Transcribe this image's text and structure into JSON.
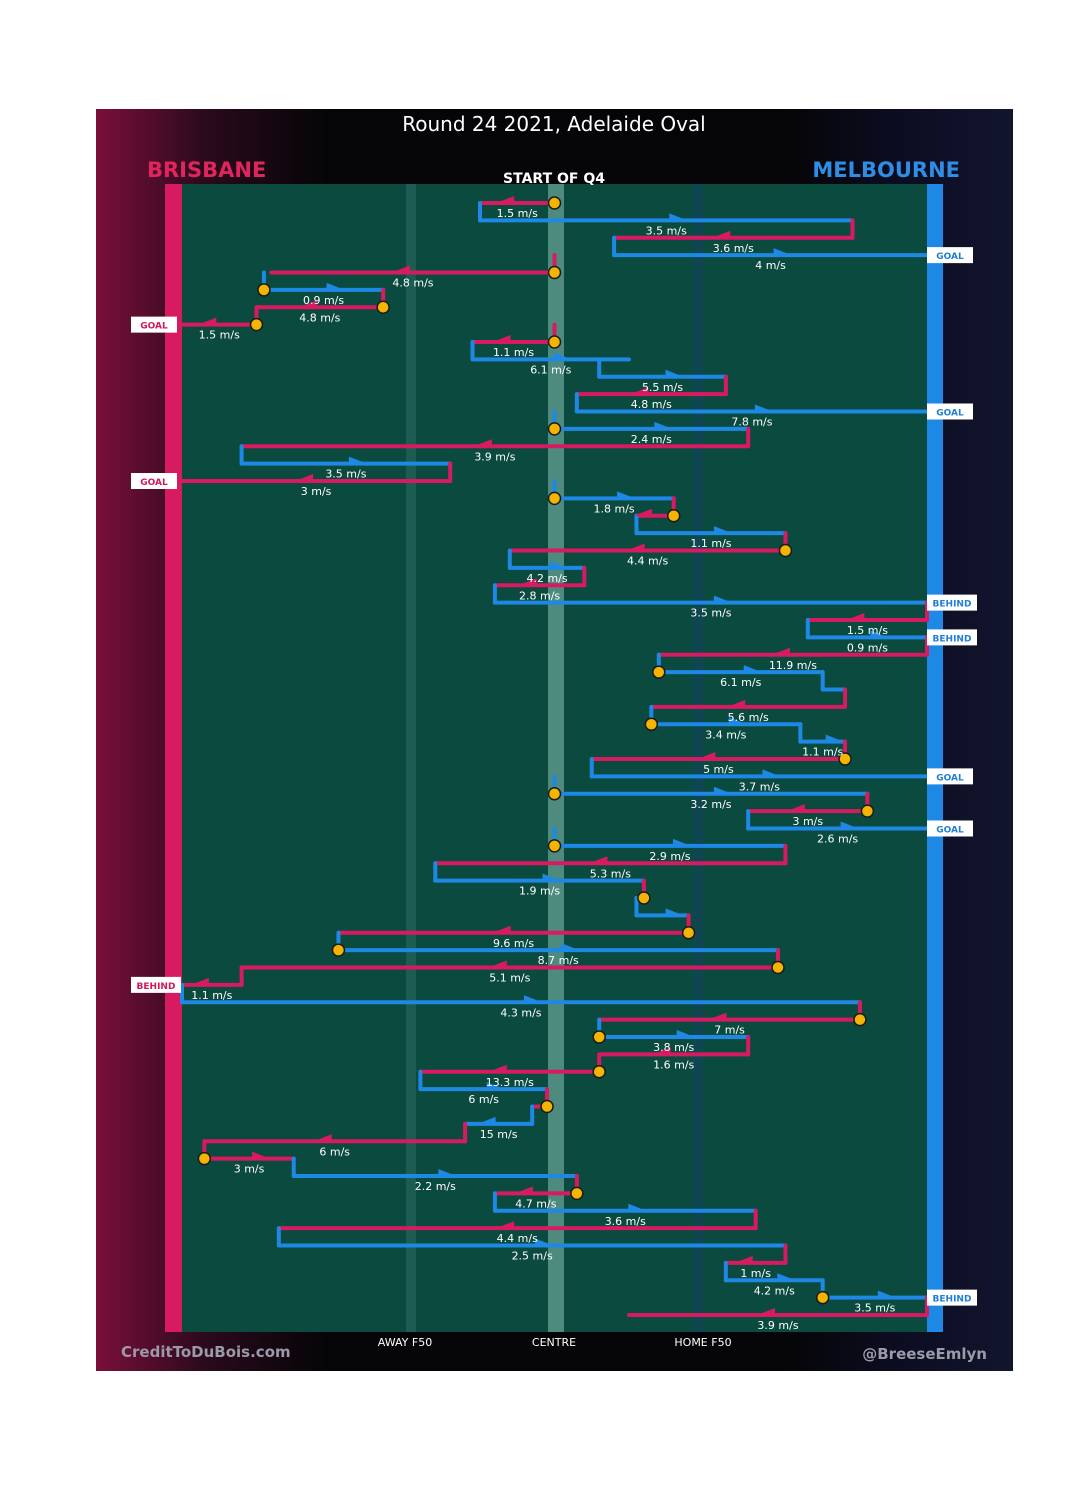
{
  "chart_data": {
    "type": "chain-flow",
    "title": "Round 24 2021, Adelaide Oval",
    "subtitle": "START OF Q4",
    "team_left": "BRISBANE",
    "team_right": "MELBOURNE",
    "colors": {
      "brisbane": "#d81b60",
      "melbourne": "#1e88e5",
      "field": "#0b4a3f",
      "ball": "#f5b400"
    },
    "x_axis": {
      "labels": [
        "AWAY F50",
        "CENTRE",
        "HOME F50"
      ],
      "range": [
        0,
        100
      ]
    },
    "credits": {
      "left": "CreditToDuBois.com",
      "right": "@BreeseEmlyn"
    },
    "steps": [
      {
        "team": "B",
        "from": 50,
        "to": 40,
        "speed": "1.5 m/s",
        "marker": "start"
      },
      {
        "team": "M",
        "from": 40,
        "to": 90,
        "speed": "3.5 m/s"
      },
      {
        "team": "B",
        "from": 90,
        "to": 58,
        "speed": "3.6 m/s"
      },
      {
        "team": "M",
        "from": 58,
        "to": 100,
        "speed": "4 m/s",
        "end": "GOAL"
      },
      {
        "team": "B",
        "from": 50,
        "to": 12,
        "speed": "4.8 m/s",
        "marker": "start"
      },
      {
        "team": "M",
        "from": 11,
        "to": 27,
        "speed": "0.9 m/s",
        "marker": "start"
      },
      {
        "team": "B",
        "from": 27,
        "to": 10,
        "speed": "4.8 m/s",
        "marker": "start"
      },
      {
        "team": "B",
        "from": 10,
        "to": 0,
        "speed": "1.5 m/s",
        "marker": "start",
        "end": "GOAL"
      },
      {
        "team": "B",
        "from": 50,
        "to": 39,
        "speed": "1.1 m/s",
        "marker": "start"
      },
      {
        "team": "M",
        "from": 39,
        "to": 60,
        "speed": "6.1 m/s"
      },
      {
        "team": "M",
        "from": 56,
        "to": 73,
        "speed": "5.5 m/s"
      },
      {
        "team": "B",
        "from": 73,
        "to": 53,
        "speed": "4.8 m/s"
      },
      {
        "team": "M",
        "from": 53,
        "to": 100,
        "speed": "7.8 m/s",
        "end": "GOAL"
      },
      {
        "team": "M",
        "from": 50,
        "to": 76,
        "speed": "2.4 m/s",
        "marker": "start"
      },
      {
        "team": "B",
        "from": 76,
        "to": 8,
        "speed": "3.9 m/s"
      },
      {
        "team": "M",
        "from": 8,
        "to": 36,
        "speed": "3.5 m/s"
      },
      {
        "team": "B",
        "from": 36,
        "to": 0,
        "speed": "3 m/s",
        "end": "GOAL"
      },
      {
        "team": "M",
        "from": 50,
        "to": 66,
        "speed": "1.8 m/s",
        "marker": "start"
      },
      {
        "team": "B",
        "from": 66,
        "to": 61,
        "speed": "",
        "marker": "start"
      },
      {
        "team": "M",
        "from": 61,
        "to": 81,
        "speed": "1.1 m/s"
      },
      {
        "team": "B",
        "from": 81,
        "to": 44,
        "speed": "4.4 m/s",
        "marker": "start"
      },
      {
        "team": "M",
        "from": 44,
        "to": 54,
        "speed": "4.2 m/s"
      },
      {
        "team": "B",
        "from": 54,
        "to": 42,
        "speed": "2.8 m/s"
      },
      {
        "team": "M",
        "from": 42,
        "to": 100,
        "speed": "3.5 m/s",
        "end": "BEHIND"
      },
      {
        "team": "B",
        "from": 100,
        "to": 84,
        "speed": "1.5 m/s"
      },
      {
        "team": "M",
        "from": 84,
        "to": 100,
        "speed": "0.9 m/s",
        "end": "BEHIND"
      },
      {
        "team": "B",
        "from": 100,
        "to": 64,
        "speed": "11.9 m/s"
      },
      {
        "team": "M",
        "from": 64,
        "to": 86,
        "speed": "6.1 m/s",
        "marker": "start"
      },
      {
        "team": "M",
        "from": 86,
        "to": 89,
        "speed": ""
      },
      {
        "team": "B",
        "from": 89,
        "to": 63,
        "speed": "5.6 m/s"
      },
      {
        "team": "M",
        "from": 63,
        "to": 83,
        "speed": "3.4 m/s",
        "marker": "start"
      },
      {
        "team": "M",
        "from": 83,
        "to": 89,
        "speed": "1.1 m/s"
      },
      {
        "team": "B",
        "from": 89,
        "to": 55,
        "speed": "5 m/s",
        "marker": "start"
      },
      {
        "team": "M",
        "from": 55,
        "to": 100,
        "speed": "3.7 m/s",
        "end": "GOAL"
      },
      {
        "team": "M",
        "from": 50,
        "to": 92,
        "speed": "3.2 m/s",
        "marker": "start"
      },
      {
        "team": "B",
        "from": 92,
        "to": 76,
        "speed": "3 m/s",
        "marker": "start"
      },
      {
        "team": "M",
        "from": 76,
        "to": 100,
        "speed": "2.6 m/s",
        "end": "GOAL"
      },
      {
        "team": "M",
        "from": 50,
        "to": 81,
        "speed": "2.9 m/s",
        "marker": "start"
      },
      {
        "team": "B",
        "from": 81,
        "to": 34,
        "speed": "5.3 m/s"
      },
      {
        "team": "M",
        "from": 34,
        "to": 62,
        "speed": "1.9 m/s"
      },
      {
        "team": "B",
        "from": 62,
        "to": 61,
        "speed": "",
        "marker": "start"
      },
      {
        "team": "M",
        "from": 61,
        "to": 68,
        "speed": ""
      },
      {
        "team": "B",
        "from": 68,
        "to": 21,
        "speed": "9.6 m/s",
        "marker": "start"
      },
      {
        "team": "M",
        "from": 21,
        "to": 80,
        "speed": "8.7 m/s",
        "marker": "start"
      },
      {
        "team": "B",
        "from": 80,
        "to": 8,
        "speed": "5.1 m/s",
        "marker": "start"
      },
      {
        "team": "B",
        "from": 8,
        "to": 0,
        "speed": "1.1 m/s",
        "end": "BEHIND"
      },
      {
        "team": "M",
        "from": 0,
        "to": 91,
        "speed": "4.3 m/s"
      },
      {
        "team": "B",
        "from": 91,
        "to": 56,
        "speed": "7 m/s",
        "marker": "start"
      },
      {
        "team": "M",
        "from": 56,
        "to": 76,
        "speed": "3.8 m/s",
        "marker": "start"
      },
      {
        "team": "B",
        "from": 76,
        "to": 56,
        "speed": "1.6 m/s"
      },
      {
        "team": "B",
        "from": 56,
        "to": 32,
        "speed": "13.3 m/s",
        "marker": "start"
      },
      {
        "team": "M",
        "from": 32,
        "to": 49,
        "speed": "6 m/s"
      },
      {
        "team": "B",
        "from": 49,
        "to": 47,
        "speed": "",
        "marker": "start"
      },
      {
        "team": "M",
        "from": 47,
        "to": 38,
        "speed": "15 m/s"
      },
      {
        "team": "B",
        "from": 38,
        "to": 3,
        "speed": "6 m/s"
      },
      {
        "team": "B",
        "from": 3,
        "to": 15,
        "speed": "3 m/s",
        "marker": "start"
      },
      {
        "team": "M",
        "from": 15,
        "to": 53,
        "speed": "2.2 m/s"
      },
      {
        "team": "B",
        "from": 53,
        "to": 42,
        "speed": "4.7 m/s",
        "marker": "start"
      },
      {
        "team": "M",
        "from": 42,
        "to": 77,
        "speed": "3.6 m/s"
      },
      {
        "team": "B",
        "from": 77,
        "to": 13,
        "speed": "4.4 m/s"
      },
      {
        "team": "M",
        "from": 13,
        "to": 81,
        "speed": "2.5 m/s"
      },
      {
        "team": "B",
        "from": 81,
        "to": 73,
        "speed": "1 m/s"
      },
      {
        "team": "M",
        "from": 73,
        "to": 86,
        "speed": "4.2 m/s"
      },
      {
        "team": "M",
        "from": 86,
        "to": 100,
        "speed": "3.5 m/s",
        "marker": "start",
        "end": "BEHIND"
      },
      {
        "team": "B",
        "from": 100,
        "to": 60,
        "speed": "3.9 m/s"
      }
    ]
  }
}
